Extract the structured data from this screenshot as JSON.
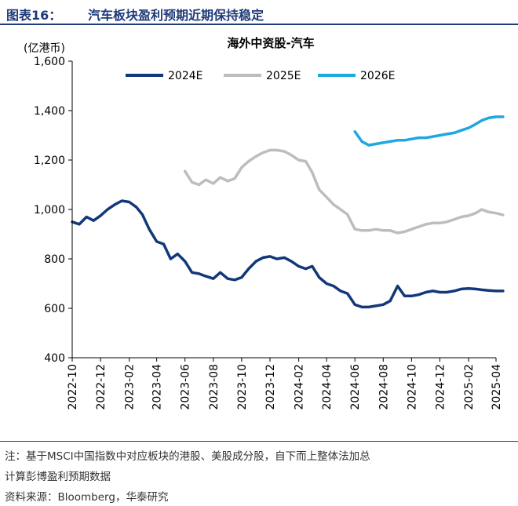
{
  "figure": {
    "label": "图表16：",
    "title": "汽车板块盈利预期近期保持稳定"
  },
  "notes": {
    "line1": "注：基于MSCI中国指数中对应板块的港股、美股成分股，自下而上整体法加总",
    "line2": "计算彭博盈利预期数据",
    "source": "资料来源：Bloomberg，华泰研究"
  },
  "chart_data": {
    "type": "line",
    "title": "海外中资股-汽车",
    "ylabel": "(亿港币)",
    "xlabel": "",
    "ylim": [
      400,
      1600
    ],
    "yticks": [
      400,
      600,
      800,
      1000,
      1200,
      1400,
      1600
    ],
    "ytick_labels": [
      "400",
      "600",
      "800",
      "1,000",
      "1,200",
      "1,400",
      "1,600"
    ],
    "xlim": [
      "2022-10",
      "2025-04"
    ],
    "xticks": [
      "2022-10",
      "2022-12",
      "2023-02",
      "2023-04",
      "2023-06",
      "2023-08",
      "2023-10",
      "2023-12",
      "2024-02",
      "2024-04",
      "2024-06",
      "2024-08",
      "2024-10",
      "2024-12",
      "2025-02",
      "2025-04"
    ],
    "grid": false,
    "legend": "top",
    "series": [
      {
        "name": "2024E",
        "color": "#12387a",
        "points": [
          [
            "2022-10-01",
            950
          ],
          [
            "2022-10-16",
            940
          ],
          [
            "2022-11-01",
            970
          ],
          [
            "2022-11-16",
            955
          ],
          [
            "2022-12-01",
            975
          ],
          [
            "2022-12-16",
            1000
          ],
          [
            "2023-01-01",
            1020
          ],
          [
            "2023-01-16",
            1035
          ],
          [
            "2023-02-01",
            1030
          ],
          [
            "2023-02-16",
            1010
          ],
          [
            "2023-03-01",
            980
          ],
          [
            "2023-03-16",
            920
          ],
          [
            "2023-04-01",
            870
          ],
          [
            "2023-04-16",
            860
          ],
          [
            "2023-05-01",
            800
          ],
          [
            "2023-05-16",
            820
          ],
          [
            "2023-06-01",
            790
          ],
          [
            "2023-06-16",
            745
          ],
          [
            "2023-07-01",
            740
          ],
          [
            "2023-07-16",
            730
          ],
          [
            "2023-08-01",
            720
          ],
          [
            "2023-08-16",
            745
          ],
          [
            "2023-09-01",
            720
          ],
          [
            "2023-09-16",
            715
          ],
          [
            "2023-10-01",
            725
          ],
          [
            "2023-10-16",
            760
          ],
          [
            "2023-11-01",
            790
          ],
          [
            "2023-11-16",
            805
          ],
          [
            "2023-12-01",
            810
          ],
          [
            "2023-12-16",
            800
          ],
          [
            "2024-01-01",
            805
          ],
          [
            "2024-01-16",
            790
          ],
          [
            "2024-02-01",
            770
          ],
          [
            "2024-02-16",
            760
          ],
          [
            "2024-03-01",
            770
          ],
          [
            "2024-03-16",
            725
          ],
          [
            "2024-04-01",
            700
          ],
          [
            "2024-04-16",
            690
          ],
          [
            "2024-05-01",
            670
          ],
          [
            "2024-05-16",
            660
          ],
          [
            "2024-06-01",
            615
          ],
          [
            "2024-06-16",
            605
          ],
          [
            "2024-07-01",
            605
          ],
          [
            "2024-07-16",
            610
          ],
          [
            "2024-08-01",
            615
          ],
          [
            "2024-08-16",
            630
          ],
          [
            "2024-09-01",
            690
          ],
          [
            "2024-09-16",
            650
          ],
          [
            "2024-10-01",
            650
          ],
          [
            "2024-10-16",
            655
          ],
          [
            "2024-11-01",
            665
          ],
          [
            "2024-11-16",
            670
          ],
          [
            "2024-12-01",
            665
          ],
          [
            "2024-12-16",
            665
          ],
          [
            "2025-01-01",
            670
          ],
          [
            "2025-01-16",
            678
          ],
          [
            "2025-02-01",
            680
          ],
          [
            "2025-02-16",
            678
          ],
          [
            "2025-03-01",
            675
          ],
          [
            "2025-03-16",
            672
          ],
          [
            "2025-04-01",
            670
          ],
          [
            "2025-04-16",
            670
          ]
        ]
      },
      {
        "name": "2025E",
        "color": "#bdbdbd",
        "points": [
          [
            "2023-06-01",
            1155
          ],
          [
            "2023-06-16",
            1110
          ],
          [
            "2023-07-01",
            1100
          ],
          [
            "2023-07-16",
            1120
          ],
          [
            "2023-08-01",
            1105
          ],
          [
            "2023-08-16",
            1130
          ],
          [
            "2023-09-01",
            1115
          ],
          [
            "2023-09-16",
            1125
          ],
          [
            "2023-10-01",
            1170
          ],
          [
            "2023-10-16",
            1195
          ],
          [
            "2023-11-01",
            1215
          ],
          [
            "2023-11-16",
            1230
          ],
          [
            "2023-12-01",
            1240
          ],
          [
            "2023-12-16",
            1240
          ],
          [
            "2024-01-01",
            1235
          ],
          [
            "2024-01-16",
            1220
          ],
          [
            "2024-02-01",
            1200
          ],
          [
            "2024-02-16",
            1195
          ],
          [
            "2024-03-01",
            1150
          ],
          [
            "2024-03-16",
            1080
          ],
          [
            "2024-04-01",
            1050
          ],
          [
            "2024-04-16",
            1020
          ],
          [
            "2024-05-01",
            1000
          ],
          [
            "2024-05-16",
            980
          ],
          [
            "2024-06-01",
            920
          ],
          [
            "2024-06-16",
            915
          ],
          [
            "2024-07-01",
            915
          ],
          [
            "2024-07-16",
            920
          ],
          [
            "2024-08-01",
            915
          ],
          [
            "2024-08-16",
            915
          ],
          [
            "2024-09-01",
            905
          ],
          [
            "2024-09-16",
            910
          ],
          [
            "2024-10-01",
            920
          ],
          [
            "2024-10-16",
            930
          ],
          [
            "2024-11-01",
            940
          ],
          [
            "2024-11-16",
            945
          ],
          [
            "2024-12-01",
            945
          ],
          [
            "2024-12-16",
            950
          ],
          [
            "2025-01-01",
            960
          ],
          [
            "2025-01-16",
            970
          ],
          [
            "2025-02-01",
            975
          ],
          [
            "2025-02-16",
            985
          ],
          [
            "2025-03-01",
            1000
          ],
          [
            "2025-03-16",
            990
          ],
          [
            "2025-04-01",
            985
          ],
          [
            "2025-04-16",
            978
          ]
        ]
      },
      {
        "name": "2026E",
        "color": "#1fa8e0",
        "points": [
          [
            "2024-06-01",
            1315
          ],
          [
            "2024-06-16",
            1275
          ],
          [
            "2024-07-01",
            1260
          ],
          [
            "2024-07-16",
            1265
          ],
          [
            "2024-08-01",
            1270
          ],
          [
            "2024-08-16",
            1275
          ],
          [
            "2024-09-01",
            1280
          ],
          [
            "2024-09-16",
            1280
          ],
          [
            "2024-10-01",
            1285
          ],
          [
            "2024-10-16",
            1290
          ],
          [
            "2024-11-01",
            1290
          ],
          [
            "2024-11-16",
            1295
          ],
          [
            "2024-12-01",
            1300
          ],
          [
            "2024-12-16",
            1305
          ],
          [
            "2025-01-01",
            1310
          ],
          [
            "2025-01-16",
            1320
          ],
          [
            "2025-02-01",
            1330
          ],
          [
            "2025-02-16",
            1345
          ],
          [
            "2025-03-01",
            1360
          ],
          [
            "2025-03-16",
            1370
          ],
          [
            "2025-04-01",
            1375
          ],
          [
            "2025-04-16",
            1375
          ]
        ]
      }
    ]
  }
}
